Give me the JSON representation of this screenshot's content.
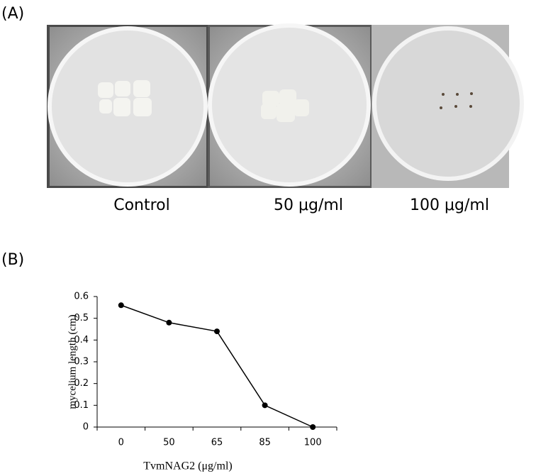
{
  "panel_a": {
    "label": "(A)",
    "captions": [
      "Control",
      "50 μg/ml",
      "100 μg/ml"
    ]
  },
  "panel_b": {
    "label": "(B)"
  },
  "chart_data": {
    "type": "line",
    "x_label": "TvmNAG2  (μg/ml)",
    "y_label": "mycelium length  (cm)",
    "categories": [
      "0",
      "50",
      "65",
      "85",
      "100"
    ],
    "values": [
      0.56,
      0.48,
      0.44,
      0.1,
      0
    ],
    "color": "#000000",
    "ylim": [
      0,
      0.6
    ],
    "yticks": [
      0,
      0.1,
      0.2,
      0.3,
      0.4,
      0.5,
      0.6
    ]
  }
}
